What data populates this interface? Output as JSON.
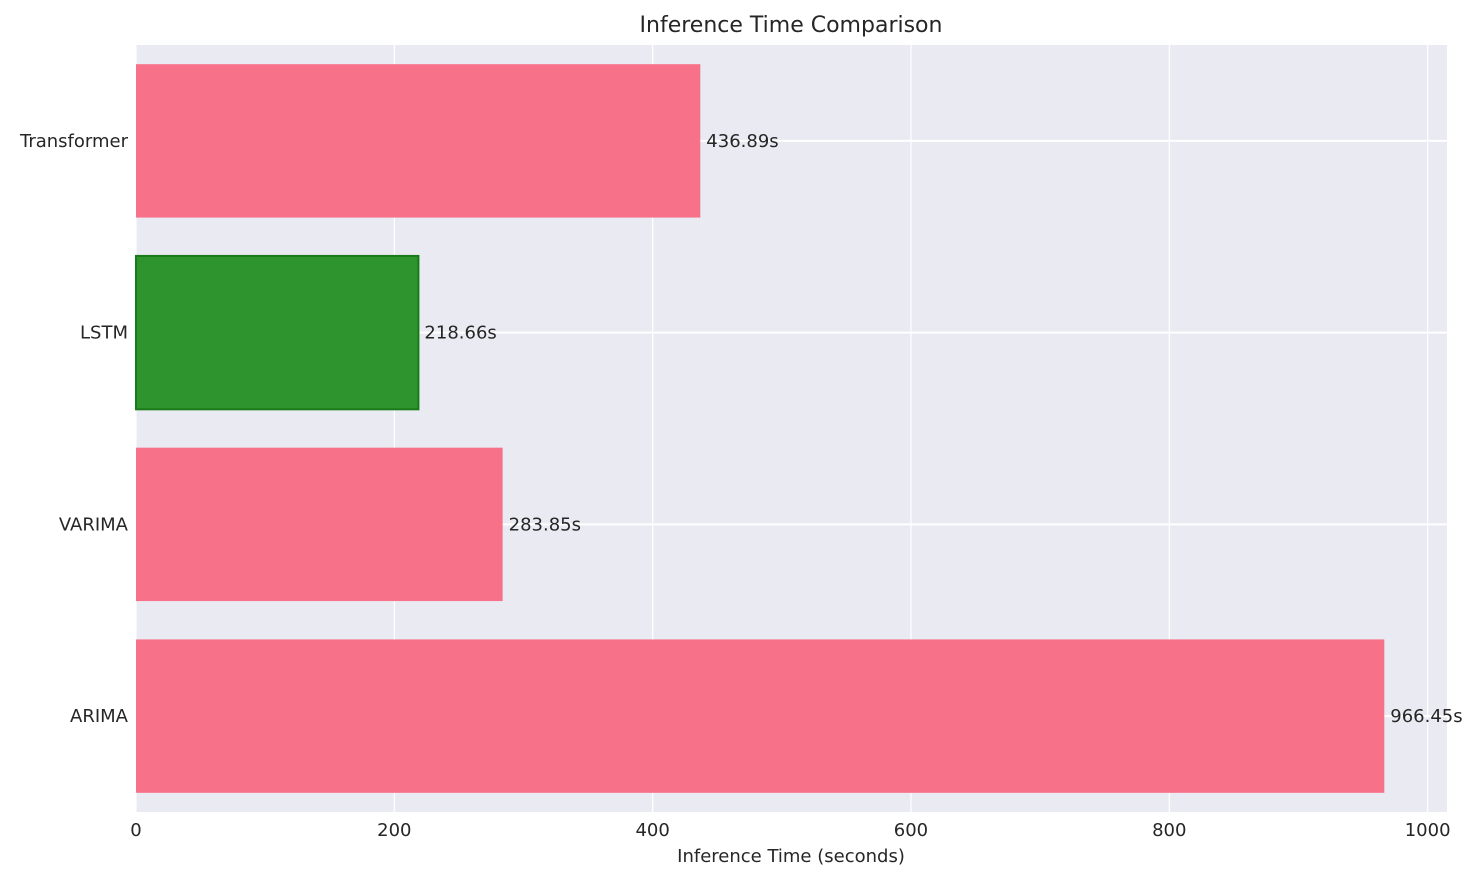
{
  "chart_data": {
    "type": "bar",
    "orientation": "horizontal",
    "title": "Inference Time Comparison",
    "xlabel": "Inference Time (seconds)",
    "ylabel": "",
    "xlim": [
      0,
      1015
    ],
    "xticks": [
      0,
      200,
      400,
      600,
      800,
      1000
    ],
    "xtick_labels": [
      "0",
      "200",
      "400",
      "600",
      "800",
      "1000"
    ],
    "grid": true,
    "categories": [
      "ARIMA",
      "VARIMA",
      "LSTM",
      "Transformer"
    ],
    "values": [
      966.45,
      283.85,
      218.66,
      436.89
    ],
    "value_labels": [
      "966.45s",
      "283.85s",
      "218.66s",
      "436.89s"
    ],
    "bar_colors": [
      "#f77189",
      "#f77189",
      "#2e942e",
      "#f77189"
    ],
    "highlight": "LSTM",
    "highlight_edge_color": "#1a7a1a",
    "plot_background": "#eaeaf2"
  }
}
